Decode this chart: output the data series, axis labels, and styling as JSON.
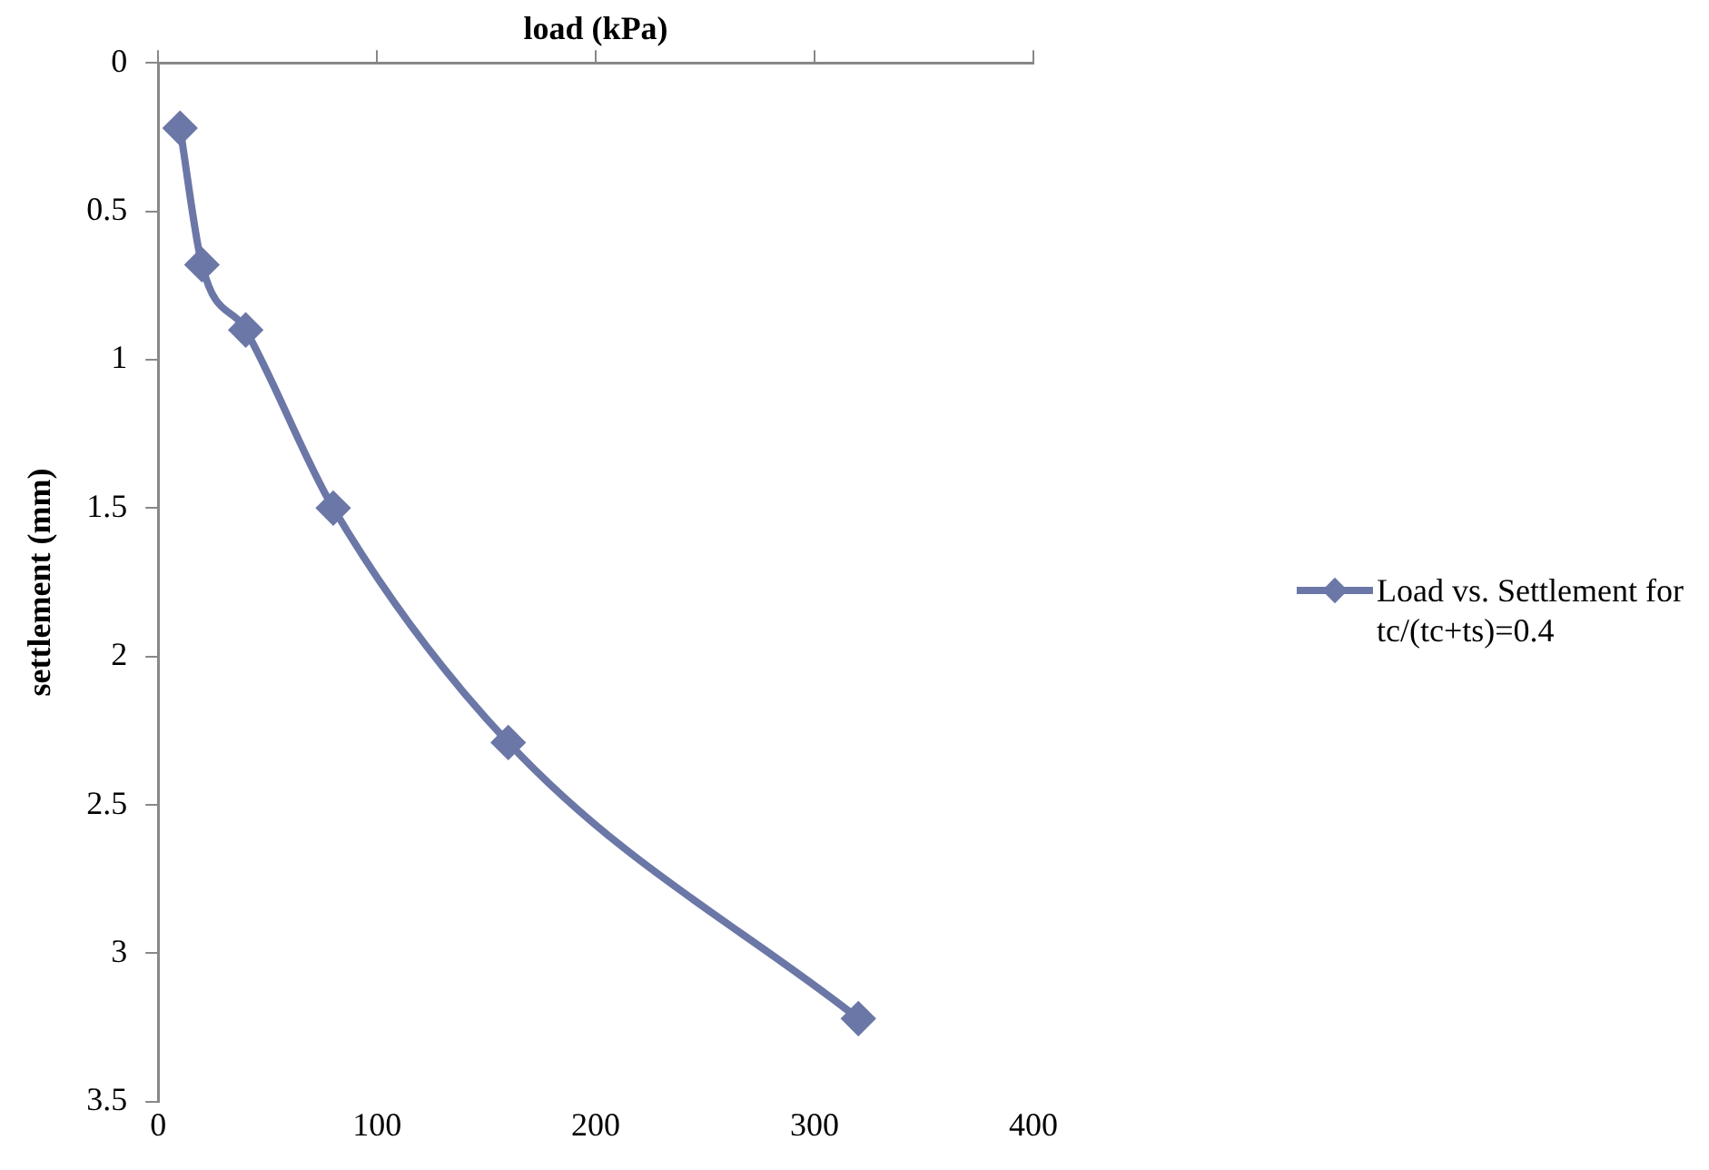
{
  "chart_data": {
    "type": "line",
    "xlabel": "load (kPa)",
    "ylabel": "settlement (mm)",
    "x": [
      10,
      20,
      40,
      80,
      160,
      320
    ],
    "series": [
      {
        "name": "Load vs. Settlement for tc/(tc+ts)=0.4",
        "color": "#6b77a6",
        "values": [
          0.22,
          0.68,
          0.9,
          1.5,
          2.29,
          3.22
        ]
      }
    ],
    "xlim": [
      0,
      400
    ],
    "xticks": [
      0,
      100,
      200,
      300,
      400
    ],
    "ylim": [
      3.5,
      0
    ],
    "yticks": [
      0,
      0.5,
      1,
      1.5,
      2,
      2.5,
      3,
      3.5
    ],
    "grid": false,
    "legend": "right",
    "marker": "diamond",
    "line_style": "solid"
  }
}
